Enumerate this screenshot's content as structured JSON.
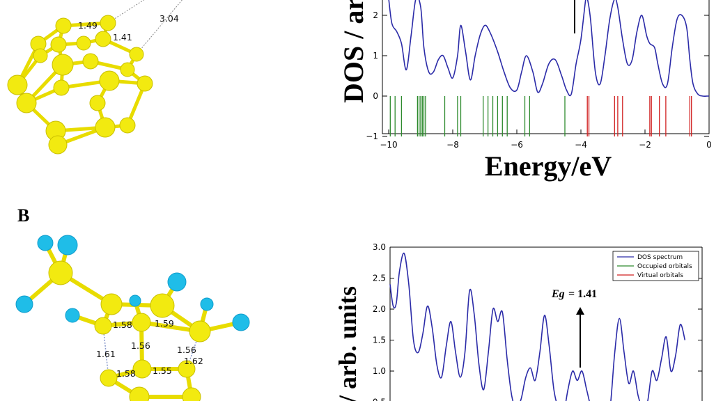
{
  "panel_label": "B",
  "colors": {
    "dos": "#2b2ba8",
    "occupied": "#2e8b2e",
    "virtual": "#d12020",
    "carbon": "#f2ea10",
    "fluorine": "#1fbde8"
  },
  "molecule_a": {
    "bond_lengths": [
      "1.49",
      "1.41",
      "3.04"
    ]
  },
  "molecule_b": {
    "bond_lengths": [
      "1.58",
      "1.59",
      "1.56",
      "1.56",
      "1.61",
      "1.62",
      "1.58",
      "1.55"
    ]
  },
  "chart_data": [
    {
      "type": "line",
      "xlabel": "Energy/eV",
      "ylabel": "DOS / ar",
      "xlim": [
        -10,
        0
      ],
      "ylim": [
        -1,
        2.5
      ],
      "x_ticks": [
        "−10",
        "−8",
        "−6",
        "−4",
        "−2",
        "0"
      ],
      "y_ticks": [
        "−1",
        "0",
        "1",
        "2"
      ],
      "series": [
        {
          "kind": "dos",
          "x": [
            -10.0,
            -9.9,
            -9.75,
            -9.6,
            -9.45,
            -9.3,
            -9.15,
            -9.0,
            -8.9,
            -8.75,
            -8.6,
            -8.45,
            -8.3,
            -8.15,
            -8.0,
            -7.85,
            -7.75,
            -7.6,
            -7.45,
            -7.3,
            -7.15,
            -7.0,
            -6.85,
            -6.6,
            -6.4,
            -6.2,
            -6.0,
            -5.85,
            -5.7,
            -5.5,
            -5.35,
            -5.2,
            -5.0,
            -4.8,
            -4.6,
            -4.45,
            -4.3,
            -4.15,
            -4.0,
            -3.85,
            -3.8,
            -3.7,
            -3.55,
            -3.4,
            -3.25,
            -3.1,
            -2.95,
            -2.85,
            -2.7,
            -2.55,
            -2.4,
            -2.25,
            -2.1,
            -1.95,
            -1.85,
            -1.7,
            -1.6,
            -1.45,
            -1.3,
            -1.15,
            -1.0,
            -0.85,
            -0.7,
            -0.6,
            -0.5,
            -0.35,
            -0.2,
            -0.05,
            0.0
          ],
          "y": [
            2.6,
            1.8,
            1.6,
            1.3,
            0.65,
            1.5,
            2.6,
            2.2,
            1.2,
            0.6,
            0.6,
            0.9,
            1.0,
            0.7,
            0.45,
            1.0,
            1.75,
            1.1,
            0.4,
            1.0,
            1.5,
            1.75,
            1.6,
            1.1,
            0.6,
            0.2,
            0.15,
            0.6,
            1.0,
            0.6,
            0.1,
            0.3,
            0.8,
            0.9,
            0.5,
            0.15,
            0.05,
            0.8,
            1.4,
            2.4,
            2.5,
            1.9,
            0.6,
            0.3,
            1.0,
            1.9,
            2.4,
            2.2,
            1.4,
            0.8,
            0.9,
            1.6,
            2.0,
            1.5,
            1.3,
            1.2,
            0.8,
            0.3,
            0.3,
            1.2,
            1.9,
            2.0,
            1.7,
            0.9,
            0.3,
            0.05,
            0.0,
            0.0,
            0.0
          ]
        },
        {
          "kind": "occupied",
          "energies": [
            -9.95,
            -9.8,
            -9.6,
            -9.1,
            -9.05,
            -9.0,
            -8.95,
            -8.9,
            -8.85,
            -8.25,
            -7.85,
            -7.75,
            -7.05,
            -6.9,
            -6.75,
            -6.6,
            -6.45,
            -6.3,
            -5.75,
            -5.6,
            -4.5
          ]
        },
        {
          "kind": "virtual",
          "energies": [
            -3.8,
            -3.75,
            -2.95,
            -2.85,
            -2.7,
            -1.85,
            -1.8,
            -1.55,
            -1.35,
            -0.6,
            -0.55
          ]
        }
      ]
    },
    {
      "type": "line",
      "ylabel": "/ arb. units",
      "xlim": [
        -10,
        0
      ],
      "ylim": [
        0.5,
        3.0
      ],
      "y_ticks": [
        "0.5",
        "1.0",
        "1.5",
        "2.0",
        "2.5",
        "3.0"
      ],
      "annotation": {
        "label": "Eg",
        "value": "= 1.41"
      },
      "legend": [
        "DOS spectrum",
        "Occupied orbitals",
        "Virtual orbitals"
      ],
      "series": [
        {
          "name": "DOS spectrum",
          "x": [
            -10.0,
            -9.9,
            -9.8,
            -9.7,
            -9.55,
            -9.4,
            -9.25,
            -9.1,
            -8.95,
            -8.8,
            -8.65,
            -8.5,
            -8.35,
            -8.2,
            -8.05,
            -7.9,
            -7.75,
            -7.6,
            -7.45,
            -7.3,
            -7.15,
            -7.0,
            -6.85,
            -6.7,
            -6.55,
            -6.4,
            -6.25,
            -6.1,
            -5.95,
            -5.8,
            -5.65,
            -5.5,
            -5.35,
            -5.2,
            -5.05,
            -4.9,
            -4.75,
            -4.6,
            -4.45,
            -4.3,
            -4.15,
            -4.0,
            -3.85,
            -3.7,
            -3.55,
            -3.4,
            -3.25,
            -3.1,
            -2.95,
            -2.8,
            -2.65,
            -2.5,
            -2.35,
            -2.2,
            -2.05,
            -1.9,
            -1.75,
            -1.6,
            -1.45,
            -1.3,
            -1.15,
            -1.0,
            -0.85,
            -0.7,
            -0.55
          ],
          "y": [
            2.4,
            2.05,
            2.1,
            2.6,
            2.9,
            2.4,
            1.5,
            1.3,
            1.6,
            2.05,
            1.7,
            1.1,
            0.9,
            1.4,
            1.8,
            1.3,
            0.9,
            1.3,
            2.3,
            1.9,
            1.1,
            0.7,
            1.3,
            2.0,
            1.8,
            1.95,
            1.2,
            0.6,
            0.4,
            0.55,
            0.9,
            1.05,
            0.85,
            1.3,
            1.9,
            1.4,
            0.7,
            0.4,
            0.3,
            0.7,
            1.0,
            0.85,
            1.0,
            0.7,
            0.4,
            0.3,
            0.4,
            0.2,
            0.4,
            1.3,
            1.85,
            1.3,
            0.8,
            1.0,
            0.6,
            0.4,
            0.5,
            1.0,
            0.85,
            1.2,
            1.55,
            1.0,
            1.25,
            1.75,
            1.5
          ]
        }
      ]
    }
  ]
}
